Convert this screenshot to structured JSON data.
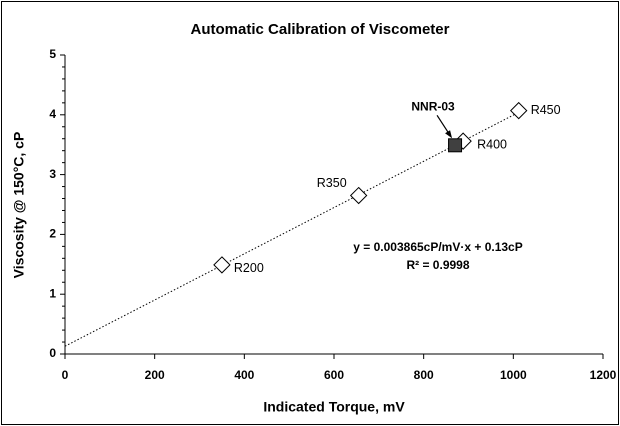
{
  "chart_data": {
    "type": "scatter",
    "title": "Automatic Calibration of Viscometer",
    "x_label": "Indicated Torque, mV",
    "y_label": "Viscosity @ 150°C, cP",
    "x": [
      350,
      655,
      888,
      1012
    ],
    "values": [
      1.49,
      2.65,
      3.56,
      4.07
    ],
    "point_labels": [
      "R200",
      "R350",
      "R400",
      "R450"
    ],
    "marker_color": "#ffffff",
    "highlight": {
      "label": "NNR-03",
      "x": 870,
      "value": 3.49,
      "color": "#404040"
    },
    "trendline": {
      "slope": 0.003865,
      "intercept": 0.13,
      "x": [
        0,
        1015
      ],
      "equation": "y = 0.003865cP/mV·x + 0.13cP",
      "r2": "R² = 0.9998"
    },
    "xlim": [
      0,
      1200
    ],
    "xticks": [
      0,
      200,
      400,
      600,
      800,
      1000,
      1200
    ],
    "ylim": [
      0,
      5
    ],
    "yticks": [
      0,
      1,
      2,
      3,
      4,
      5
    ],
    "grid": false
  }
}
